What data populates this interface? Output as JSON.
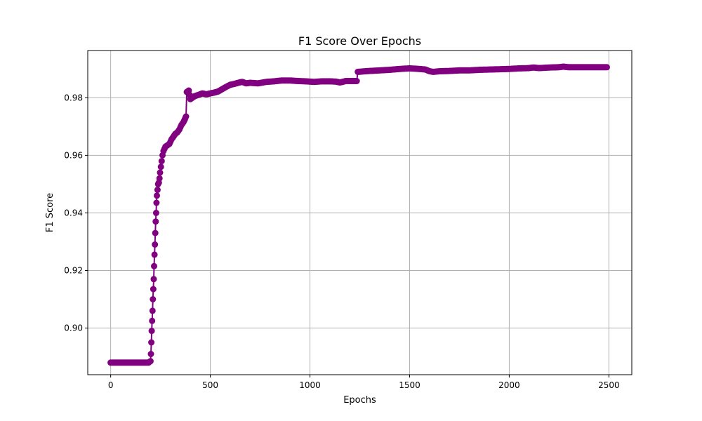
{
  "chart_data": {
    "type": "line",
    "title": "F1 Score Over Epochs",
    "xlabel": "Epochs",
    "ylabel": "F1 Score",
    "xlim": [
      -115,
      2615
    ],
    "ylim": [
      0.8838,
      0.9964
    ],
    "xticks": [
      0,
      500,
      1000,
      1500,
      2000,
      2500
    ],
    "yticks": [
      0.9,
      0.92,
      0.94,
      0.96,
      0.98
    ],
    "grid": true,
    "legend": "none",
    "colors": {
      "series": "#800080",
      "grid": "#b0b0b0",
      "axis": "#000000"
    },
    "series": [
      {
        "marker": "circle",
        "points": [
          [
            0,
            0.888
          ],
          [
            50,
            0.888
          ],
          [
            100,
            0.888
          ],
          [
            150,
            0.888
          ],
          [
            190,
            0.888
          ],
          [
            200,
            0.8885
          ],
          [
            202,
            0.891
          ],
          [
            204,
            0.895
          ],
          [
            206,
            0.899
          ],
          [
            208,
            0.9025
          ],
          [
            210,
            0.906
          ],
          [
            212,
            0.91
          ],
          [
            214,
            0.9135
          ],
          [
            216,
            0.917
          ],
          [
            218,
            0.9215
          ],
          [
            220,
            0.9255
          ],
          [
            222,
            0.929
          ],
          [
            224,
            0.933
          ],
          [
            226,
            0.937
          ],
          [
            228,
            0.94
          ],
          [
            230,
            0.9435
          ],
          [
            232,
            0.946
          ],
          [
            235,
            0.948
          ],
          [
            238,
            0.95
          ],
          [
            242,
            0.9505
          ],
          [
            245,
            0.952
          ],
          [
            248,
            0.954
          ],
          [
            252,
            0.956
          ],
          [
            256,
            0.958
          ],
          [
            260,
            0.96
          ],
          [
            265,
            0.9615
          ],
          [
            275,
            0.963
          ],
          [
            285,
            0.9635
          ],
          [
            295,
            0.964
          ],
          [
            305,
            0.9655
          ],
          [
            315,
            0.9665
          ],
          [
            325,
            0.9675
          ],
          [
            335,
            0.968
          ],
          [
            345,
            0.969
          ],
          [
            355,
            0.9705
          ],
          [
            365,
            0.9715
          ],
          [
            372,
            0.9725
          ],
          [
            378,
            0.9735
          ],
          [
            382,
            0.982
          ],
          [
            392,
            0.9825
          ],
          [
            400,
            0.9795
          ],
          [
            420,
            0.9805
          ],
          [
            440,
            0.981
          ],
          [
            460,
            0.9815
          ],
          [
            480,
            0.9812
          ],
          [
            500,
            0.9815
          ],
          [
            520,
            0.9818
          ],
          [
            540,
            0.9822
          ],
          [
            560,
            0.983
          ],
          [
            580,
            0.9838
          ],
          [
            600,
            0.9845
          ],
          [
            620,
            0.9848
          ],
          [
            640,
            0.9852
          ],
          [
            660,
            0.9855
          ],
          [
            680,
            0.985
          ],
          [
            700,
            0.9852
          ],
          [
            740,
            0.985
          ],
          [
            780,
            0.9855
          ],
          [
            820,
            0.9857
          ],
          [
            860,
            0.986
          ],
          [
            900,
            0.986
          ],
          [
            940,
            0.9858
          ],
          [
            980,
            0.9857
          ],
          [
            1020,
            0.9855
          ],
          [
            1060,
            0.9857
          ],
          [
            1100,
            0.9857
          ],
          [
            1130,
            0.9856
          ],
          [
            1150,
            0.9853
          ],
          [
            1180,
            0.9858
          ],
          [
            1220,
            0.9858
          ],
          [
            1235,
            0.9858
          ],
          [
            1240,
            0.989
          ],
          [
            1300,
            0.9893
          ],
          [
            1350,
            0.9895
          ],
          [
            1400,
            0.9897
          ],
          [
            1450,
            0.99
          ],
          [
            1500,
            0.9902
          ],
          [
            1550,
            0.99
          ],
          [
            1580,
            0.9898
          ],
          [
            1600,
            0.9892
          ],
          [
            1620,
            0.989
          ],
          [
            1650,
            0.9892
          ],
          [
            1700,
            0.9893
          ],
          [
            1750,
            0.9895
          ],
          [
            1800,
            0.9895
          ],
          [
            1850,
            0.9897
          ],
          [
            1900,
            0.9898
          ],
          [
            1950,
            0.9899
          ],
          [
            2000,
            0.99
          ],
          [
            2050,
            0.9902
          ],
          [
            2100,
            0.9903
          ],
          [
            2120,
            0.9905
          ],
          [
            2150,
            0.9903
          ],
          [
            2200,
            0.9905
          ],
          [
            2250,
            0.9906
          ],
          [
            2270,
            0.9908
          ],
          [
            2300,
            0.9906
          ],
          [
            2350,
            0.9906
          ],
          [
            2400,
            0.9906
          ],
          [
            2450,
            0.9906
          ],
          [
            2490,
            0.9906
          ]
        ]
      }
    ]
  }
}
